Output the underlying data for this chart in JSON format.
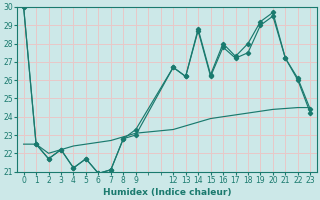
{
  "xlabel": "Humidex (Indice chaleur)",
  "bg_color": "#cce8e8",
  "grid_color": "#e8c8c8",
  "line_color": "#1a7a6e",
  "xlim": [
    -0.5,
    23.5
  ],
  "ylim": [
    21,
    30
  ],
  "xticks": [
    0,
    1,
    2,
    3,
    4,
    5,
    6,
    7,
    8,
    9,
    12,
    13,
    14,
    15,
    16,
    17,
    18,
    19,
    20,
    21,
    22,
    23
  ],
  "yticks": [
    21,
    22,
    23,
    24,
    25,
    26,
    27,
    28,
    29,
    30
  ],
  "series1_x": [
    0,
    1,
    2,
    3,
    4,
    5,
    6,
    7,
    8,
    9,
    12,
    13,
    14,
    15,
    16,
    17,
    18,
    19,
    20,
    21,
    22,
    23
  ],
  "series1_y": [
    30,
    22.5,
    21.7,
    22.2,
    21.2,
    21.7,
    20.9,
    21.1,
    22.8,
    23.0,
    26.7,
    26.2,
    28.7,
    26.2,
    27.8,
    27.2,
    27.5,
    29.0,
    29.5,
    27.2,
    26.0,
    24.2
  ],
  "series2_x": [
    0,
    1,
    2,
    3,
    4,
    5,
    6,
    7,
    8,
    9,
    12,
    13,
    14,
    15,
    16,
    17,
    18,
    19,
    20,
    21,
    22,
    23
  ],
  "series2_y": [
    30,
    22.5,
    21.7,
    22.2,
    21.2,
    21.7,
    20.9,
    21.1,
    22.8,
    23.3,
    26.7,
    26.2,
    28.8,
    26.3,
    28.0,
    27.3,
    28.0,
    29.2,
    29.7,
    27.2,
    26.1,
    24.4
  ],
  "series3_x": [
    0,
    1,
    2,
    3,
    4,
    5,
    6,
    7,
    8,
    9,
    12,
    13,
    14,
    15,
    16,
    17,
    18,
    19,
    20,
    21,
    22,
    23
  ],
  "series3_y": [
    22.5,
    22.5,
    22.0,
    22.2,
    22.4,
    22.5,
    22.6,
    22.7,
    22.9,
    23.1,
    23.3,
    23.5,
    23.7,
    23.9,
    24.0,
    24.1,
    24.2,
    24.3,
    24.4,
    24.45,
    24.5,
    24.5
  ]
}
